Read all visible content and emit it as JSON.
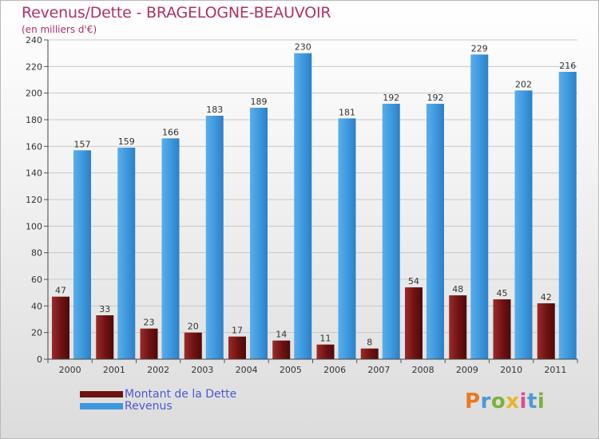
{
  "header": {
    "title": "Revenus/Dette - BRAGELOGNE-BEAUVOIR",
    "subtitle": "(en milliers d'€)"
  },
  "legend": {
    "debt_label": "Montant de la Dette",
    "revenue_label": "Revenus"
  },
  "brand": {
    "letters": [
      "P",
      "r",
      "o",
      "x",
      "i",
      "t",
      "i"
    ]
  },
  "colors": {
    "debt": "#7a1515",
    "revenue": "#3d97dd",
    "title": "#b0306a",
    "legend_text": "#4b58d6"
  },
  "chart_data": {
    "type": "bar",
    "title": "Revenus/Dette - BRAGELOGNE-BEAUVOIR",
    "ylabel": "(en milliers d'€)",
    "xlabel": "",
    "ylim": [
      0,
      240
    ],
    "yticks": [
      0,
      20,
      40,
      60,
      80,
      100,
      120,
      140,
      160,
      180,
      200,
      220,
      240
    ],
    "grid": true,
    "legend_position": "bottom-left",
    "categories": [
      "2000",
      "2001",
      "2002",
      "2003",
      "2004",
      "2005",
      "2006",
      "2007",
      "2008",
      "2009",
      "2010",
      "2011"
    ],
    "series": [
      {
        "name": "Montant de la Dette",
        "values": [
          47,
          33,
          23,
          20,
          17,
          14,
          11,
          8,
          54,
          48,
          45,
          42
        ]
      },
      {
        "name": "Revenus",
        "values": [
          157,
          159,
          166,
          183,
          189,
          230,
          181,
          192,
          192,
          229,
          202,
          216
        ]
      }
    ]
  }
}
